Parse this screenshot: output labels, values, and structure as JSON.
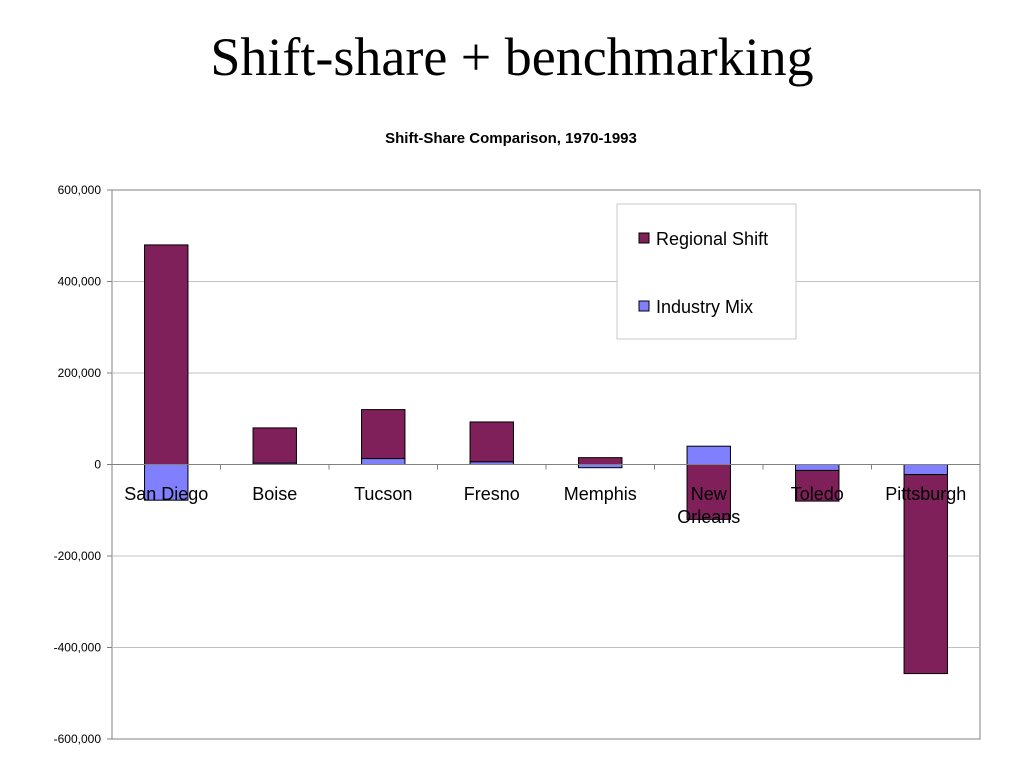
{
  "slide": {
    "title": "Shift-share  + benchmarking"
  },
  "colors": {
    "regional_shift": "#80205a",
    "industry_mix": "#8080ff",
    "grid": "#c0c0c0",
    "axis": "#808080"
  },
  "chart_data": {
    "type": "bar",
    "stacked": true,
    "title": "Shift-Share Comparison, 1970-1993",
    "xlabel": "",
    "ylabel": "",
    "ylim": [
      -600000,
      600000
    ],
    "yticks": [
      600000,
      400000,
      200000,
      0,
      -200000,
      -400000,
      -600000
    ],
    "ytick_labels": [
      "600,000",
      "400,000",
      "200,000",
      "0",
      "-200,000",
      "-400,000",
      "-600,000"
    ],
    "grid": true,
    "legend_position": "top-right",
    "categories": [
      "San Diego",
      "Boise",
      "Tucson",
      "Fresno",
      "Memphis",
      "New Orleans",
      "Toledo",
      "Pittsburgh"
    ],
    "category_lines": [
      [
        "San Diego"
      ],
      [
        "Boise"
      ],
      [
        "Tucson"
      ],
      [
        "Fresno"
      ],
      [
        "Memphis"
      ],
      [
        "New",
        "Orleans"
      ],
      [
        "Toledo"
      ],
      [
        "Pittsburgh"
      ]
    ],
    "series": [
      {
        "name": "Regional Shift",
        "color": "#80205a",
        "values": [
          480000,
          77000,
          107000,
          87000,
          15000,
          -120000,
          -67000,
          -435000
        ]
      },
      {
        "name": "Industry Mix",
        "color": "#8080ff",
        "values": [
          -78000,
          3000,
          13000,
          6000,
          -7000,
          40000,
          -13000,
          -22000
        ]
      }
    ],
    "legend": [
      "Regional Shift",
      "Industry Mix"
    ]
  }
}
